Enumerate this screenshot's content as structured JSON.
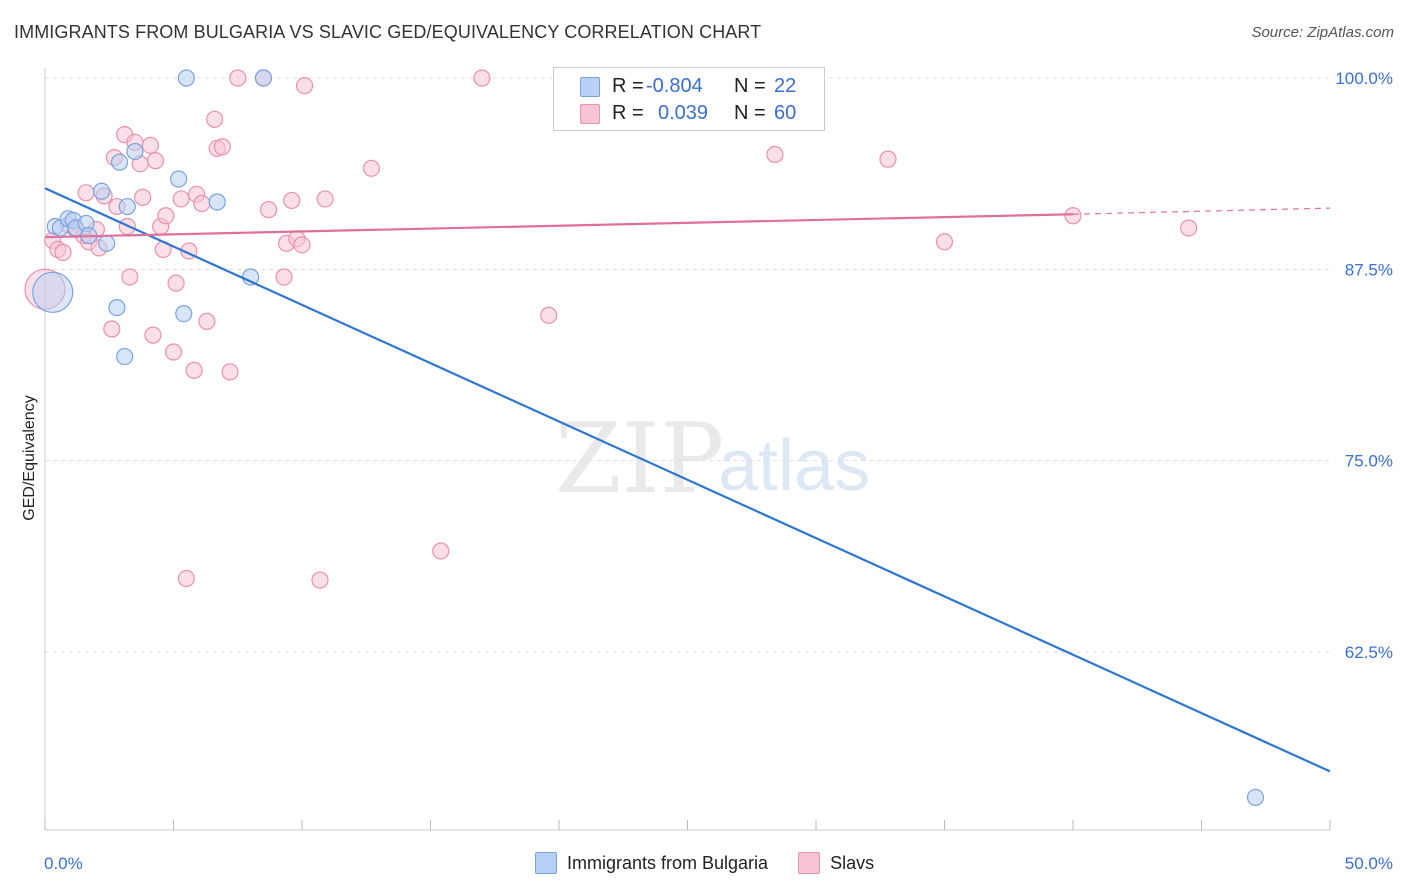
{
  "title": "IMMIGRANTS FROM BULGARIA VS SLAVIC GED/EQUIVALENCY CORRELATION CHART",
  "source": "Source: ZipAtlas.com",
  "watermark": {
    "zip": "ZIP",
    "atlas": "atlas"
  },
  "colors": {
    "blue_fill": "#b8d0f3",
    "blue_stroke": "#7aa3de",
    "blue_line": "#2e76d2",
    "pink_fill": "#f6c4d4",
    "pink_stroke": "#e991ae",
    "pink_line": "#e0709a",
    "axis_label": "#3a6fd0",
    "grid": "#dddddd"
  },
  "legend": {
    "rows": [
      {
        "r_label": "R =",
        "r_value": "-0.804",
        "n_label": "N =",
        "n_value": "22"
      },
      {
        "r_label": "R =",
        "r_value": "0.039",
        "n_label": "N =",
        "n_value": "60"
      }
    ]
  },
  "chart_data": {
    "type": "scatter",
    "xlabel": "",
    "ylabel": "GED/Equivalency",
    "xlim": [
      0,
      50
    ],
    "ylim": [
      50,
      101
    ],
    "x_tick_labels": [
      "0.0%",
      "50.0%"
    ],
    "y_ticks": [
      62.5,
      75.0,
      87.5,
      100.0
    ],
    "y_tick_labels": [
      "62.5%",
      "75.0%",
      "87.5%",
      "100.0%"
    ],
    "grid": "horizontal dashed",
    "legend_position": "top-center",
    "series": [
      {
        "name": "Immigrants from Bulgaria",
        "color": "blue",
        "points": [
          [
            0.3,
            86.0
          ],
          [
            0.4,
            90.3
          ],
          [
            0.6,
            90.2
          ],
          [
            0.9,
            90.8
          ],
          [
            1.1,
            90.7
          ],
          [
            1.2,
            90.2
          ],
          [
            1.6,
            90.5
          ],
          [
            1.7,
            89.7
          ],
          [
            2.2,
            92.6
          ],
          [
            2.4,
            89.2
          ],
          [
            2.8,
            85.0
          ],
          [
            2.9,
            94.5
          ],
          [
            3.1,
            81.8
          ],
          [
            3.2,
            91.6
          ],
          [
            3.5,
            95.2
          ],
          [
            5.2,
            93.4
          ],
          [
            5.4,
            84.6
          ],
          [
            5.5,
            100.0
          ],
          [
            6.7,
            91.9
          ],
          [
            8.0,
            87.0
          ],
          [
            8.5,
            100.0
          ],
          [
            47.1,
            53.0
          ]
        ],
        "trend": {
          "x": [
            0.0,
            50.0
          ],
          "y": [
            92.8,
            54.7
          ]
        }
      },
      {
        "name": "Slavs",
        "color": "pink",
        "points": [
          [
            0.0,
            86.2
          ],
          [
            0.3,
            89.4
          ],
          [
            0.5,
            88.8
          ],
          [
            0.7,
            88.6
          ],
          [
            0.9,
            90.4
          ],
          [
            1.2,
            90.1
          ],
          [
            1.5,
            89.7
          ],
          [
            1.6,
            92.5
          ],
          [
            1.7,
            89.3
          ],
          [
            2.0,
            90.1
          ],
          [
            2.1,
            88.9
          ],
          [
            2.3,
            92.3
          ],
          [
            2.6,
            83.6
          ],
          [
            2.7,
            94.8
          ],
          [
            2.8,
            91.6
          ],
          [
            3.1,
            96.3
          ],
          [
            3.2,
            90.3
          ],
          [
            3.3,
            87.0
          ],
          [
            3.5,
            95.8
          ],
          [
            3.7,
            94.4
          ],
          [
            3.8,
            92.2
          ],
          [
            4.1,
            95.6
          ],
          [
            4.2,
            83.2
          ],
          [
            4.3,
            94.6
          ],
          [
            4.5,
            90.3
          ],
          [
            4.6,
            88.8
          ],
          [
            4.7,
            91.0
          ],
          [
            5.0,
            82.1
          ],
          [
            5.1,
            86.6
          ],
          [
            5.3,
            92.1
          ],
          [
            5.5,
            67.3
          ],
          [
            5.6,
            88.7
          ],
          [
            5.8,
            80.9
          ],
          [
            5.9,
            92.4
          ],
          [
            6.1,
            91.8
          ],
          [
            6.3,
            84.1
          ],
          [
            6.6,
            97.3
          ],
          [
            6.7,
            95.4
          ],
          [
            6.9,
            95.5
          ],
          [
            7.2,
            80.8
          ],
          [
            7.5,
            100.0
          ],
          [
            8.5,
            100.0
          ],
          [
            8.7,
            91.4
          ],
          [
            9.3,
            87.0
          ],
          [
            9.4,
            89.2
          ],
          [
            9.6,
            92.0
          ],
          [
            9.8,
            89.5
          ],
          [
            10.0,
            89.1
          ],
          [
            10.1,
            99.5
          ],
          [
            10.7,
            67.2
          ],
          [
            10.9,
            92.1
          ],
          [
            12.7,
            94.1
          ],
          [
            15.4,
            69.1
          ],
          [
            17.0,
            100.0
          ],
          [
            19.6,
            84.5
          ],
          [
            28.4,
            95.0
          ],
          [
            32.8,
            94.7
          ],
          [
            35.0,
            89.3
          ],
          [
            40.0,
            91.0
          ],
          [
            44.5,
            90.2
          ]
        ],
        "trend": {
          "x": [
            0.0,
            40.0
          ],
          "y": [
            89.6,
            91.1
          ]
        },
        "trend_dashed": {
          "x": [
            40.0,
            50.0
          ],
          "y": [
            91.1,
            91.5
          ]
        }
      }
    ]
  }
}
